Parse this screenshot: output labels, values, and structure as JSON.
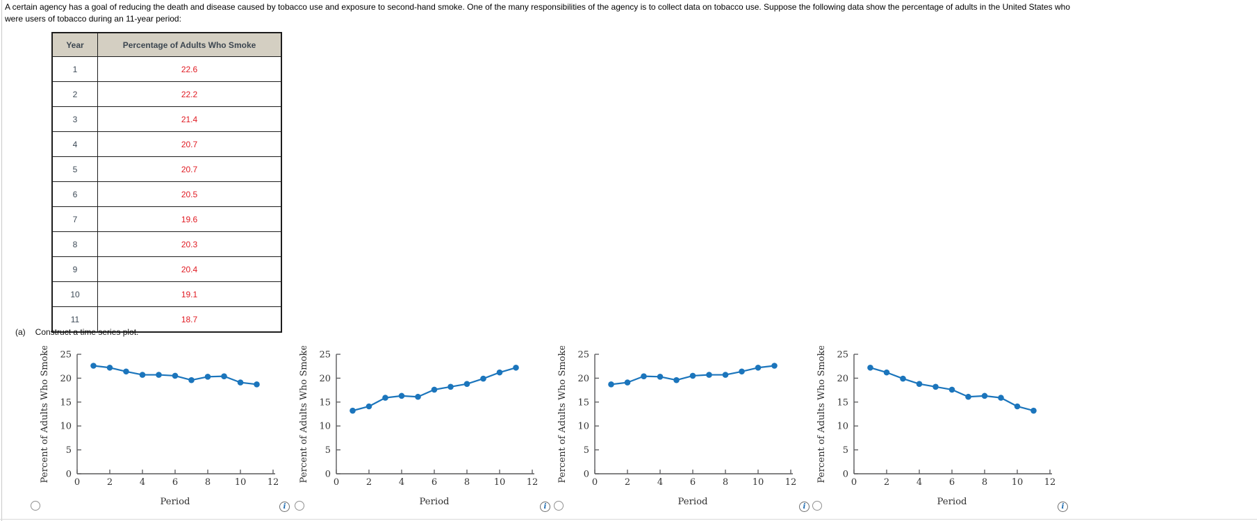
{
  "intro": {
    "line1": "A certain agency has a goal of reducing the death and disease caused by tobacco use and exposure to second-hand smoke. One of the many responsibilities of the agency is to collect data on tobacco use. Suppose the following data show the percentage of adults in the United States who",
    "line2": "were users of tobacco during an 11-year period:"
  },
  "table": {
    "headers": [
      "Year",
      "Percentage of Adults Who Smoke"
    ],
    "rows": [
      [
        "1",
        "22.6"
      ],
      [
        "2",
        "22.2"
      ],
      [
        "3",
        "21.4"
      ],
      [
        "4",
        "20.7"
      ],
      [
        "5",
        "20.7"
      ],
      [
        "6",
        "20.5"
      ],
      [
        "7",
        "19.6"
      ],
      [
        "8",
        "20.3"
      ],
      [
        "9",
        "20.4"
      ],
      [
        "10",
        "19.1"
      ],
      [
        "11",
        "18.7"
      ]
    ]
  },
  "prompt": {
    "label": "(a)",
    "text": "Construct a time series plot."
  },
  "icons": {
    "info_glyph": "i"
  },
  "colors": {
    "series_blue": "#1b75bc",
    "value_red": "#e01a22",
    "year_text": "#3d4a57",
    "header_bg": "#d4cfc2",
    "axis_gray": "#58585a",
    "tick_text": "#333333"
  },
  "options": [
    {
      "id": "plot-option-1",
      "selected": false
    },
    {
      "id": "plot-option-2",
      "selected": false
    },
    {
      "id": "plot-option-3",
      "selected": false
    },
    {
      "id": "plot-option-4",
      "selected": false
    }
  ],
  "chart_data": [
    {
      "type": "line",
      "title": "",
      "xlabel": "Period",
      "ylabel": "Percent of Adults Who Smoke",
      "x": [
        1,
        2,
        3,
        4,
        5,
        6,
        7,
        8,
        9,
        10,
        11
      ],
      "values": [
        22.6,
        22.2,
        21.4,
        20.7,
        20.7,
        20.5,
        19.6,
        20.3,
        20.4,
        19.1,
        18.7
      ],
      "xticks": [
        0,
        2,
        4,
        6,
        8,
        10,
        12
      ],
      "yticks": [
        0,
        5,
        10,
        15,
        20,
        25
      ],
      "xlim": [
        0,
        12
      ],
      "ylim": [
        0,
        25
      ],
      "grid": false,
      "marker": "circle",
      "legend": null
    },
    {
      "type": "line",
      "title": "",
      "xlabel": "Period",
      "ylabel": "Percent of Adults Who Smoke",
      "x": [
        1,
        2,
        3,
        4,
        5,
        6,
        7,
        8,
        9,
        10,
        11
      ],
      "values": [
        13.2,
        14.1,
        15.9,
        16.3,
        16.1,
        17.6,
        18.2,
        18.8,
        19.9,
        21.2,
        22.2
      ],
      "xticks": [
        0,
        2,
        4,
        6,
        8,
        10,
        12
      ],
      "yticks": [
        0,
        5,
        10,
        15,
        20,
        25
      ],
      "xlim": [
        0,
        12
      ],
      "ylim": [
        0,
        25
      ],
      "grid": false,
      "marker": "circle",
      "legend": null
    },
    {
      "type": "line",
      "title": "",
      "xlabel": "Period",
      "ylabel": "Percent of Adults Who Smoke",
      "x": [
        1,
        2,
        3,
        4,
        5,
        6,
        7,
        8,
        9,
        10,
        11
      ],
      "values": [
        18.7,
        19.1,
        20.4,
        20.3,
        19.6,
        20.5,
        20.7,
        20.7,
        21.4,
        22.2,
        22.6
      ],
      "xticks": [
        0,
        2,
        4,
        6,
        8,
        10,
        12
      ],
      "yticks": [
        0,
        5,
        10,
        15,
        20,
        25
      ],
      "xlim": [
        0,
        12
      ],
      "ylim": [
        0,
        25
      ],
      "grid": false,
      "marker": "circle",
      "legend": null
    },
    {
      "type": "line",
      "title": "",
      "xlabel": "Period",
      "ylabel": "Percent of Adults Who Smoke",
      "x": [
        1,
        2,
        3,
        4,
        5,
        6,
        7,
        8,
        9,
        10,
        11
      ],
      "values": [
        22.2,
        21.2,
        19.9,
        18.8,
        18.2,
        17.6,
        16.1,
        16.3,
        15.9,
        14.1,
        13.2
      ],
      "xticks": [
        0,
        2,
        4,
        6,
        8,
        10,
        12
      ],
      "yticks": [
        0,
        5,
        10,
        15,
        20,
        25
      ],
      "xlim": [
        0,
        12
      ],
      "ylim": [
        0,
        25
      ],
      "grid": false,
      "marker": "circle",
      "legend": null
    }
  ]
}
